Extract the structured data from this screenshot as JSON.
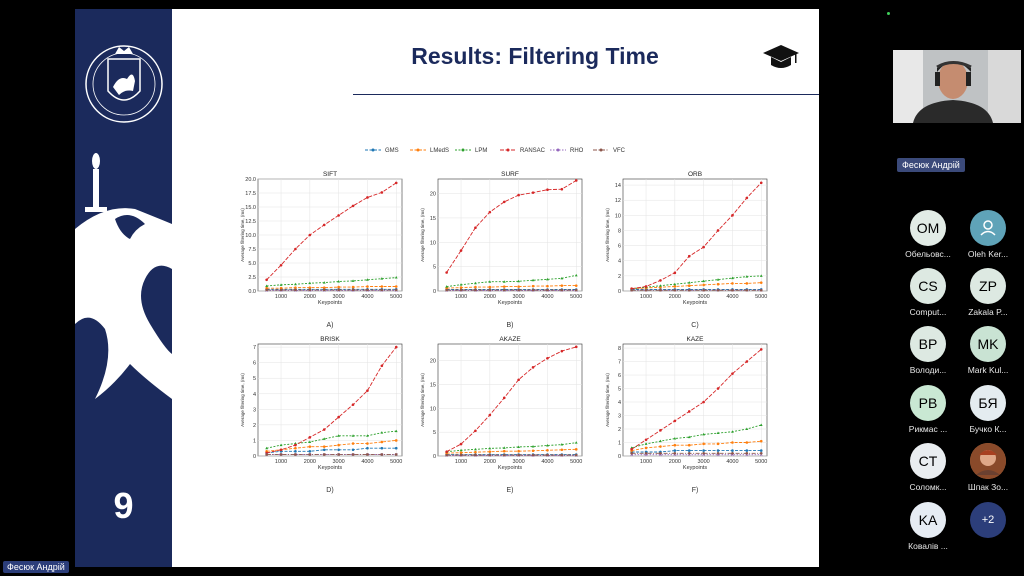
{
  "slide": {
    "title": "Results: Filtering Time",
    "number": "9"
  },
  "legend": [
    "GMS",
    "LMedS",
    "LPM",
    "RANSAC",
    "RHO",
    "VFC"
  ],
  "colors": {
    "GMS": "#1f77b4",
    "LMedS": "#ff7f0e",
    "LPM": "#2ca02c",
    "RANSAC": "#d62728",
    "RHO": "#9467bd",
    "VFC": "#8c564b",
    "slide_navy": "#1b2a5c"
  },
  "chart_data": [
    {
      "type": "line",
      "title": "SIFT",
      "letter": "A)",
      "xlabel": "Keypoints",
      "ylabel": "Average filtering time, (ms)",
      "x": [
        500,
        1000,
        1500,
        2000,
        2500,
        3000,
        3500,
        4000,
        4500,
        5000
      ],
      "ylim": [
        0,
        20
      ],
      "yticks": [
        "0.0",
        "2.5",
        "5.0",
        "7.5",
        "10.0",
        "12.5",
        "15.0",
        "17.5",
        "20.0"
      ],
      "ytick_values": [
        0,
        2.5,
        5,
        7.5,
        10,
        12.5,
        15,
        17.5,
        20
      ],
      "series": [
        {
          "name": "GMS",
          "values": [
            0.3,
            0.3,
            0.3,
            0.3,
            0.3,
            0.3,
            0.3,
            0.3,
            0.3,
            0.3
          ]
        },
        {
          "name": "LMedS",
          "values": [
            0.5,
            0.5,
            0.6,
            0.6,
            0.6,
            0.7,
            0.7,
            0.8,
            0.8,
            0.8
          ]
        },
        {
          "name": "LPM",
          "values": [
            0.9,
            1.1,
            1.2,
            1.4,
            1.5,
            1.7,
            1.8,
            2.0,
            2.2,
            2.4
          ]
        },
        {
          "name": "RANSAC",
          "values": [
            2.0,
            4.6,
            7.5,
            10.0,
            11.8,
            13.5,
            15.2,
            16.7,
            17.6,
            19.3
          ]
        },
        {
          "name": "RHO",
          "values": [
            0.1,
            0.1,
            0.1,
            0.1,
            0.1,
            0.1,
            0.1,
            0.1,
            0.1,
            0.1
          ]
        },
        {
          "name": "VFC",
          "values": [
            0.2,
            0.2,
            0.2,
            0.2,
            0.2,
            0.2,
            0.2,
            0.2,
            0.2,
            0.2
          ]
        }
      ]
    },
    {
      "type": "line",
      "title": "SURF",
      "letter": "B)",
      "xlabel": "Keypoints",
      "ylabel": "Average filtering time, (ms)",
      "x": [
        500,
        1000,
        1500,
        2000,
        2500,
        3000,
        3500,
        4000,
        4500,
        5000
      ],
      "ylim": [
        0,
        23
      ],
      "yticks": [
        "0",
        "5",
        "10",
        "15",
        "20"
      ],
      "ytick_values": [
        0,
        5,
        10,
        15,
        20
      ],
      "series": [
        {
          "name": "GMS",
          "values": [
            0.3,
            0.3,
            0.3,
            0.3,
            0.3,
            0.3,
            0.3,
            0.3,
            0.3,
            0.3
          ]
        },
        {
          "name": "LMedS",
          "values": [
            0.6,
            0.7,
            0.8,
            0.8,
            0.9,
            0.9,
            1.0,
            1.0,
            1.1,
            1.1
          ]
        },
        {
          "name": "LPM",
          "values": [
            0.9,
            1.3,
            1.6,
            1.9,
            1.9,
            2.0,
            2.2,
            2.4,
            2.6,
            3.2
          ]
        },
        {
          "name": "RANSAC",
          "values": [
            3.8,
            8.3,
            13.0,
            16.2,
            18.3,
            19.7,
            20.2,
            20.8,
            20.9,
            22.7
          ]
        },
        {
          "name": "RHO",
          "values": [
            0.1,
            0.1,
            0.1,
            0.1,
            0.1,
            0.1,
            0.1,
            0.1,
            0.1,
            0.1
          ]
        },
        {
          "name": "VFC",
          "values": [
            0.2,
            0.2,
            0.2,
            0.2,
            0.2,
            0.2,
            0.2,
            0.2,
            0.2,
            0.2
          ]
        }
      ]
    },
    {
      "type": "line",
      "title": "ORB",
      "letter": "C)",
      "xlabel": "Keypoints",
      "ylabel": "Average filtering time, (ms)",
      "x": [
        500,
        1000,
        1500,
        2000,
        2500,
        3000,
        3500,
        4000,
        4500,
        5000
      ],
      "ylim": [
        0,
        14.8
      ],
      "yticks": [
        "0",
        "2",
        "4",
        "6",
        "8",
        "10",
        "12",
        "14"
      ],
      "ytick_values": [
        0,
        2,
        4,
        6,
        8,
        10,
        12,
        14
      ],
      "series": [
        {
          "name": "GMS",
          "values": [
            0.2,
            0.2,
            0.2,
            0.2,
            0.2,
            0.2,
            0.2,
            0.2,
            0.2,
            0.2
          ]
        },
        {
          "name": "LMedS",
          "values": [
            0.3,
            0.4,
            0.5,
            0.6,
            0.7,
            0.8,
            0.9,
            1.0,
            1.0,
            1.1
          ]
        },
        {
          "name": "LPM",
          "values": [
            0.3,
            0.5,
            0.7,
            0.9,
            1.1,
            1.3,
            1.5,
            1.7,
            1.9,
            2.0
          ]
        },
        {
          "name": "RANSAC",
          "values": [
            0.3,
            0.6,
            1.4,
            2.4,
            4.6,
            5.8,
            8.0,
            10.0,
            12.3,
            14.3
          ]
        },
        {
          "name": "RHO",
          "values": [
            0.1,
            0.1,
            0.1,
            0.1,
            0.1,
            0.1,
            0.1,
            0.1,
            0.1,
            0.1
          ]
        },
        {
          "name": "VFC",
          "values": [
            0.1,
            0.1,
            0.1,
            0.1,
            0.1,
            0.1,
            0.1,
            0.1,
            0.1,
            0.1
          ]
        }
      ]
    },
    {
      "type": "line",
      "title": "BRISK",
      "letter": "D)",
      "xlabel": "Keypoints",
      "ylabel": "Average filtering time, (ms)",
      "x": [
        500,
        1000,
        1500,
        2000,
        2500,
        3000,
        3500,
        4000,
        4500,
        5000
      ],
      "ylim": [
        0,
        7.2
      ],
      "yticks": [
        "0",
        "1",
        "2",
        "3",
        "4",
        "5",
        "6",
        "7"
      ],
      "ytick_values": [
        0,
        1,
        2,
        3,
        4,
        5,
        6,
        7
      ],
      "series": [
        {
          "name": "GMS",
          "values": [
            0.2,
            0.3,
            0.3,
            0.3,
            0.4,
            0.4,
            0.4,
            0.5,
            0.5,
            0.5
          ]
        },
        {
          "name": "LMedS",
          "values": [
            0.3,
            0.4,
            0.5,
            0.6,
            0.6,
            0.7,
            0.8,
            0.8,
            0.9,
            1.0
          ]
        },
        {
          "name": "LPM",
          "values": [
            0.5,
            0.7,
            0.8,
            0.9,
            1.1,
            1.3,
            1.3,
            1.3,
            1.5,
            1.6
          ]
        },
        {
          "name": "RANSAC",
          "values": [
            0.2,
            0.4,
            0.7,
            1.2,
            1.7,
            2.5,
            3.3,
            4.2,
            5.8,
            7.0
          ]
        },
        {
          "name": "RHO",
          "values": [
            0.1,
            0.1,
            0.1,
            0.1,
            0.1,
            0.1,
            0.1,
            0.1,
            0.1,
            0.1
          ]
        },
        {
          "name": "VFC",
          "values": [
            0.1,
            0.1,
            0.1,
            0.1,
            0.1,
            0.1,
            0.1,
            0.1,
            0.1,
            0.1
          ]
        }
      ]
    },
    {
      "type": "line",
      "title": "AKAZE",
      "letter": "E)",
      "xlabel": "Keypoints",
      "ylabel": "Average filtering time, (ms)",
      "x": [
        500,
        1000,
        1500,
        2000,
        2500,
        3000,
        3500,
        4000,
        4500,
        5000
      ],
      "ylim": [
        0,
        23.5
      ],
      "yticks": [
        "0",
        "5",
        "10",
        "15",
        "20"
      ],
      "ytick_values": [
        0,
        5,
        10,
        15,
        20
      ],
      "series": [
        {
          "name": "GMS",
          "values": [
            0.3,
            0.3,
            0.3,
            0.3,
            0.3,
            0.3,
            0.3,
            0.3,
            0.3,
            0.3
          ]
        },
        {
          "name": "LMedS",
          "values": [
            0.6,
            0.7,
            0.8,
            0.9,
            1.0,
            1.0,
            1.1,
            1.2,
            1.3,
            1.4
          ]
        },
        {
          "name": "LPM",
          "values": [
            0.9,
            1.2,
            1.4,
            1.6,
            1.7,
            1.9,
            2.0,
            2.2,
            2.4,
            2.8
          ]
        },
        {
          "name": "RANSAC",
          "values": [
            0.9,
            2.5,
            5.3,
            8.6,
            12.2,
            16.0,
            18.6,
            20.5,
            22.0,
            22.9
          ]
        },
        {
          "name": "RHO",
          "values": [
            0.1,
            0.1,
            0.1,
            0.1,
            0.1,
            0.1,
            0.1,
            0.1,
            0.1,
            0.1
          ]
        },
        {
          "name": "VFC",
          "values": [
            0.2,
            0.2,
            0.2,
            0.2,
            0.2,
            0.2,
            0.2,
            0.2,
            0.2,
            0.2
          ]
        }
      ]
    },
    {
      "type": "line",
      "title": "KAZE",
      "letter": "F)",
      "xlabel": "Keypoints",
      "ylabel": "Average filtering time, (ms)",
      "x": [
        500,
        1000,
        1500,
        2000,
        2500,
        3000,
        3500,
        4000,
        4500,
        5000
      ],
      "ylim": [
        0,
        8.3
      ],
      "yticks": [
        "0",
        "1",
        "2",
        "3",
        "4",
        "5",
        "6",
        "7",
        "8"
      ],
      "ytick_values": [
        0,
        1,
        2,
        3,
        4,
        5,
        6,
        7,
        8
      ],
      "series": [
        {
          "name": "GMS",
          "values": [
            0.3,
            0.3,
            0.3,
            0.4,
            0.4,
            0.4,
            0.4,
            0.4,
            0.4,
            0.4
          ]
        },
        {
          "name": "LMedS",
          "values": [
            0.4,
            0.6,
            0.7,
            0.8,
            0.8,
            0.9,
            0.9,
            1.0,
            1.0,
            1.1
          ]
        },
        {
          "name": "LPM",
          "values": [
            0.6,
            0.9,
            1.1,
            1.3,
            1.4,
            1.6,
            1.7,
            1.8,
            2.0,
            2.3
          ]
        },
        {
          "name": "RANSAC",
          "values": [
            0.5,
            1.2,
            1.9,
            2.6,
            3.3,
            4.0,
            5.0,
            6.1,
            7.0,
            7.9
          ]
        },
        {
          "name": "RHO",
          "values": [
            0.1,
            0.1,
            0.1,
            0.1,
            0.1,
            0.1,
            0.1,
            0.1,
            0.1,
            0.1
          ]
        },
        {
          "name": "VFC",
          "values": [
            0.2,
            0.2,
            0.2,
            0.2,
            0.2,
            0.2,
            0.2,
            0.2,
            0.2,
            0.2
          ]
        }
      ]
    }
  ],
  "xticks": [
    "1000",
    "2000",
    "3000",
    "4000",
    "5000"
  ],
  "xtick_values": [
    1000,
    2000,
    3000,
    4000,
    5000
  ],
  "meeting": {
    "self_label": "Фесюк Андрій",
    "camera_name": "Фесюк Андрій",
    "participants": [
      {
        "initials": "OM",
        "name": "Обельовс...",
        "color": "#e2ece6"
      },
      {
        "initials": "",
        "name": "Oleh Ker...",
        "color": "#5fa3b8",
        "icon": "user-icon"
      },
      {
        "initials": "CS",
        "name": "Comput...",
        "color": "#dde9e2"
      },
      {
        "initials": "ZP",
        "name": "Zakala P...",
        "color": "#dde9e2"
      },
      {
        "initials": "BP",
        "name": "Володи...",
        "color": "#dde9e2"
      },
      {
        "initials": "MK",
        "name": "Mark Kul...",
        "color": "#c9e3d3"
      },
      {
        "initials": "PB",
        "name": "Рикмас ...",
        "color": "#c9e8d3"
      },
      {
        "initials": "БЯ",
        "name": "Бучко К...",
        "color": "#e4ecf0"
      },
      {
        "initials": "CT",
        "name": "Соломк...",
        "color": "#e9edf0"
      },
      {
        "initials": "",
        "name": "Шпак Зо...",
        "color": "#c47a40",
        "icon": "photo-avatar-icon"
      },
      {
        "initials": "KA",
        "name": "Ковалів ...",
        "color": "#e6ecf3"
      },
      {
        "initials": "+2",
        "name": "",
        "color": "#2c3e7a"
      }
    ]
  }
}
